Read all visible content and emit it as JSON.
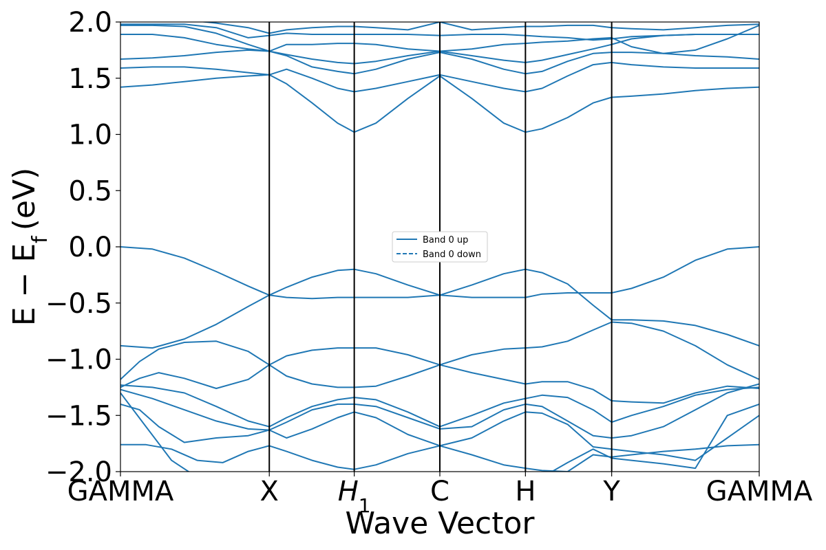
{
  "chart_data": {
    "type": "line",
    "xlabel": "Wave Vector",
    "ylabel": "E − E_f (eV)",
    "ylabel_main": "E − E",
    "ylabel_sub": "f",
    "ylabel_unit": "(eV)",
    "ylim": [
      -2.0,
      2.0
    ],
    "yticks": [
      -2.0,
      -1.5,
      -1.0,
      -0.5,
      0.0,
      0.5,
      1.0,
      1.5,
      2.0
    ],
    "ytick_labels": [
      "−2.0",
      "−1.5",
      "−1.0",
      "−0.5",
      "0.0",
      "0.5",
      "1.0",
      "1.5",
      "2.0"
    ],
    "kpoints": [
      {
        "label": "GAMMA",
        "x": 0.0
      },
      {
        "label": "X",
        "x": 0.233
      },
      {
        "label": "H",
        "sub": "1",
        "x": 0.366
      },
      {
        "label": "C",
        "x": 0.5
      },
      {
        "label": "H",
        "x": 0.634
      },
      {
        "label": "Y",
        "x": 0.769
      },
      {
        "label": "GAMMA",
        "x": 1.0
      }
    ],
    "legend": {
      "placement": "center",
      "entries": [
        {
          "label": "Band 0 up",
          "style": "solid"
        },
        {
          "label": "Band 0 down",
          "style": "dashed"
        }
      ]
    },
    "line_color": "#1f77b4",
    "bands": [
      {
        "x": [
          0,
          0.05,
          0.1,
          0.15,
          0.2,
          0.233,
          0.26,
          0.3,
          0.34,
          0.366,
          0.4,
          0.45,
          0.5,
          0.55,
          0.6,
          0.634,
          0.66,
          0.7,
          0.74,
          0.769,
          0.8,
          0.85,
          0.9,
          0.95,
          1.0
        ],
        "y": [
          0.0,
          -0.02,
          -0.1,
          -0.22,
          -0.35,
          -0.43,
          -0.36,
          -0.27,
          -0.21,
          -0.2,
          -0.24,
          -0.34,
          -0.43,
          -0.34,
          -0.24,
          -0.2,
          -0.23,
          -0.33,
          -0.52,
          -0.65,
          -0.65,
          -0.66,
          -0.7,
          -0.78,
          -0.88
        ]
      },
      {
        "x": [
          0,
          0.05,
          0.1,
          0.15,
          0.2,
          0.233,
          0.26,
          0.3,
          0.34,
          0.366,
          0.4,
          0.45,
          0.5,
          0.55,
          0.6,
          0.634,
          0.66,
          0.7,
          0.74,
          0.769,
          0.8,
          0.85,
          0.9,
          0.95,
          1.0
        ],
        "y": [
          -0.88,
          -0.9,
          -0.82,
          -0.69,
          -0.53,
          -0.43,
          -0.45,
          -0.46,
          -0.45,
          -0.45,
          -0.45,
          -0.45,
          -0.43,
          -0.45,
          -0.45,
          -0.45,
          -0.42,
          -0.41,
          -0.41,
          -0.41,
          -0.37,
          -0.27,
          -0.12,
          -0.02,
          0.0
        ]
      },
      {
        "x": [
          0,
          0.03,
          0.06,
          0.1,
          0.15,
          0.2,
          0.233,
          0.26,
          0.3,
          0.34,
          0.366,
          0.4,
          0.45,
          0.5,
          0.55,
          0.6,
          0.634,
          0.66,
          0.7,
          0.74,
          0.769,
          0.8,
          0.85,
          0.9,
          0.95,
          1.0
        ],
        "y": [
          -1.18,
          -1.02,
          -0.91,
          -0.85,
          -0.84,
          -0.93,
          -1.05,
          -0.97,
          -0.92,
          -0.9,
          -0.9,
          -0.9,
          -0.96,
          -1.05,
          -0.96,
          -0.91,
          -0.9,
          -0.89,
          -0.84,
          -0.74,
          -0.67,
          -0.68,
          -0.75,
          -0.88,
          -1.05,
          -1.18
        ]
      },
      {
        "x": [
          0,
          0.03,
          0.06,
          0.1,
          0.15,
          0.2,
          0.233,
          0.26,
          0.3,
          0.34,
          0.366,
          0.4,
          0.45,
          0.5,
          0.55,
          0.6,
          0.634,
          0.66,
          0.7,
          0.74,
          0.769,
          0.8,
          0.85,
          0.9,
          0.95,
          1.0
        ],
        "y": [
          -1.25,
          -1.17,
          -1.12,
          -1.17,
          -1.26,
          -1.18,
          -1.05,
          -1.15,
          -1.22,
          -1.25,
          -1.25,
          -1.24,
          -1.15,
          -1.05,
          -1.12,
          -1.18,
          -1.22,
          -1.2,
          -1.2,
          -1.27,
          -1.37,
          -1.38,
          -1.39,
          -1.3,
          -1.24,
          -1.26
        ]
      },
      {
        "x": [
          0,
          0.05,
          0.1,
          0.15,
          0.2,
          0.233,
          0.26,
          0.3,
          0.34,
          0.366,
          0.4,
          0.45,
          0.5,
          0.55,
          0.6,
          0.634,
          0.66,
          0.7,
          0.74,
          0.769,
          0.8,
          0.85,
          0.9,
          0.95,
          1.0
        ],
        "y": [
          -1.23,
          -1.25,
          -1.3,
          -1.42,
          -1.55,
          -1.6,
          -1.52,
          -1.42,
          -1.36,
          -1.34,
          -1.36,
          -1.47,
          -1.6,
          -1.5,
          -1.39,
          -1.35,
          -1.32,
          -1.34,
          -1.45,
          -1.56,
          -1.5,
          -1.42,
          -1.32,
          -1.27,
          -1.25
        ]
      },
      {
        "x": [
          0,
          0.05,
          0.1,
          0.15,
          0.2,
          0.233,
          0.26,
          0.3,
          0.34,
          0.366,
          0.4,
          0.45,
          0.5,
          0.55,
          0.6,
          0.634,
          0.66,
          0.7,
          0.74,
          0.769,
          0.8,
          0.85,
          0.9,
          0.95,
          1.0
        ],
        "y": [
          -1.27,
          -1.35,
          -1.45,
          -1.55,
          -1.62,
          -1.63,
          -1.56,
          -1.45,
          -1.4,
          -1.4,
          -1.42,
          -1.52,
          -1.62,
          -1.6,
          -1.45,
          -1.4,
          -1.42,
          -1.55,
          -1.68,
          -1.7,
          -1.68,
          -1.6,
          -1.45,
          -1.3,
          -1.22
        ]
      },
      {
        "x": [
          0,
          0.03,
          0.06,
          0.1,
          0.15,
          0.2,
          0.233,
          0.26,
          0.3,
          0.34,
          0.366,
          0.4,
          0.45,
          0.5,
          0.55,
          0.6,
          0.634,
          0.66,
          0.7,
          0.74,
          0.769,
          0.8,
          0.85,
          0.9,
          0.95,
          1.0
        ],
        "y": [
          -1.4,
          -1.45,
          -1.6,
          -1.74,
          -1.7,
          -1.68,
          -1.63,
          -1.7,
          -1.62,
          -1.52,
          -1.47,
          -1.52,
          -1.67,
          -1.77,
          -1.7,
          -1.55,
          -1.47,
          -1.48,
          -1.58,
          -1.78,
          -1.8,
          -1.82,
          -1.85,
          -1.9,
          -1.7,
          -1.5
        ]
      },
      {
        "x": [
          0,
          0.04,
          0.08,
          0.12,
          0.16,
          0.2,
          0.233,
          0.26,
          0.3,
          0.34,
          0.366,
          0.4,
          0.45,
          0.5,
          0.55,
          0.6,
          0.634,
          0.66,
          0.7,
          0.74,
          0.769,
          0.8,
          0.85,
          0.9,
          0.95,
          1.0
        ],
        "y": [
          -1.76,
          -1.76,
          -1.8,
          -1.9,
          -1.92,
          -1.82,
          -1.77,
          -1.82,
          -1.9,
          -1.96,
          -1.98,
          -1.94,
          -1.84,
          -1.77,
          -1.85,
          -1.94,
          -1.97,
          -1.99,
          -2.0,
          -1.85,
          -1.87,
          -1.85,
          -1.82,
          -1.8,
          -1.77,
          -1.76
        ]
      },
      {
        "x": [
          0,
          0.04,
          0.08,
          0.12,
          0.16,
          0.2,
          0.233,
          0.26,
          0.3,
          0.34,
          0.366,
          0.4,
          0.45,
          0.5,
          0.55,
          0.6,
          0.634,
          0.66,
          0.7,
          0.74,
          0.769,
          0.8,
          0.85,
          0.9,
          0.95,
          1.0
        ],
        "y": [
          -1.3,
          -1.6,
          -1.9,
          -2.05,
          -2.05,
          -2.05,
          -2.05,
          -2.05,
          -2.05,
          -2.05,
          -2.05,
          -2.05,
          -2.05,
          -2.05,
          -2.05,
          -2.05,
          -2.05,
          -2.05,
          -1.92,
          -1.8,
          -1.88,
          -1.9,
          -1.93,
          -1.97,
          -1.5,
          -1.4
        ]
      },
      {
        "x": [
          0,
          0.05,
          0.1,
          0.15,
          0.2,
          0.233,
          0.26,
          0.3,
          0.34,
          0.366,
          0.4,
          0.45,
          0.5,
          0.55,
          0.6,
          0.634,
          0.66,
          0.7,
          0.74,
          0.769,
          0.8,
          0.85,
          0.9,
          0.95,
          1.0
        ],
        "y": [
          1.42,
          1.44,
          1.47,
          1.5,
          1.52,
          1.53,
          1.45,
          1.28,
          1.1,
          1.02,
          1.1,
          1.32,
          1.52,
          1.32,
          1.1,
          1.02,
          1.05,
          1.15,
          1.28,
          1.33,
          1.34,
          1.36,
          1.39,
          1.41,
          1.42
        ]
      },
      {
        "x": [
          0,
          0.05,
          0.1,
          0.15,
          0.2,
          0.233,
          0.26,
          0.3,
          0.34,
          0.366,
          0.4,
          0.45,
          0.5,
          0.55,
          0.6,
          0.634,
          0.66,
          0.7,
          0.74,
          0.769,
          0.8,
          0.85,
          0.9,
          0.95,
          1.0
        ],
        "y": [
          1.59,
          1.6,
          1.6,
          1.58,
          1.55,
          1.53,
          1.58,
          1.5,
          1.41,
          1.38,
          1.41,
          1.47,
          1.53,
          1.47,
          1.41,
          1.38,
          1.41,
          1.52,
          1.62,
          1.64,
          1.62,
          1.6,
          1.59,
          1.59,
          1.59
        ]
      },
      {
        "x": [
          0,
          0.05,
          0.1,
          0.15,
          0.2,
          0.233,
          0.26,
          0.3,
          0.34,
          0.366,
          0.4,
          0.45,
          0.5,
          0.55,
          0.6,
          0.634,
          0.66,
          0.7,
          0.74,
          0.769,
          0.8,
          0.85,
          0.9,
          0.95,
          1.0
        ],
        "y": [
          1.67,
          1.68,
          1.7,
          1.73,
          1.75,
          1.74,
          1.7,
          1.6,
          1.56,
          1.54,
          1.58,
          1.67,
          1.73,
          1.67,
          1.58,
          1.54,
          1.56,
          1.65,
          1.72,
          1.73,
          1.73,
          1.72,
          1.7,
          1.69,
          1.67
        ]
      },
      {
        "x": [
          0,
          0.05,
          0.1,
          0.15,
          0.2,
          0.233,
          0.26,
          0.3,
          0.34,
          0.366,
          0.4,
          0.45,
          0.5,
          0.55,
          0.6,
          0.634,
          0.66,
          0.7,
          0.74,
          0.769,
          0.8,
          0.85,
          0.9,
          0.95,
          1.0
        ],
        "y": [
          1.89,
          1.89,
          1.86,
          1.8,
          1.76,
          1.74,
          1.71,
          1.67,
          1.64,
          1.63,
          1.65,
          1.7,
          1.74,
          1.7,
          1.66,
          1.64,
          1.66,
          1.71,
          1.76,
          1.8,
          1.85,
          1.88,
          1.89,
          1.89,
          1.89
        ]
      },
      {
        "x": [
          0,
          0.05,
          0.1,
          0.15,
          0.2,
          0.233,
          0.26,
          0.3,
          0.34,
          0.366,
          0.4,
          0.45,
          0.5,
          0.55,
          0.6,
          0.634,
          0.66,
          0.7,
          0.74,
          0.769,
          0.8,
          0.85,
          0.9,
          0.95,
          1.0
        ],
        "y": [
          1.97,
          1.97,
          1.96,
          1.9,
          1.8,
          1.74,
          1.8,
          1.8,
          1.81,
          1.81,
          1.8,
          1.76,
          1.74,
          1.76,
          1.8,
          1.81,
          1.82,
          1.83,
          1.85,
          1.86,
          1.78,
          1.72,
          1.75,
          1.85,
          1.97
        ]
      },
      {
        "x": [
          0,
          0.05,
          0.1,
          0.15,
          0.2,
          0.233,
          0.26,
          0.3,
          0.34,
          0.366,
          0.4,
          0.45,
          0.5,
          0.55,
          0.6,
          0.634,
          0.66,
          0.7,
          0.74,
          0.769,
          0.8,
          0.85,
          0.9,
          0.95,
          1.0
        ],
        "y": [
          1.98,
          1.98,
          1.98,
          1.95,
          1.86,
          1.88,
          1.9,
          1.89,
          1.89,
          1.89,
          1.89,
          1.89,
          1.88,
          1.89,
          1.89,
          1.88,
          1.87,
          1.86,
          1.84,
          1.85,
          1.87,
          1.88,
          1.89,
          1.89,
          1.89
        ]
      },
      {
        "x": [
          0,
          0.05,
          0.1,
          0.15,
          0.2,
          0.233,
          0.26,
          0.3,
          0.34,
          0.366,
          0.4,
          0.45,
          0.5,
          0.55,
          0.6,
          0.634,
          0.66,
          0.7,
          0.74,
          0.769,
          0.8,
          0.85,
          0.9,
          0.95,
          1.0
        ],
        "y": [
          2.05,
          2.05,
          2.02,
          1.99,
          1.95,
          1.9,
          1.93,
          1.95,
          1.96,
          1.96,
          1.95,
          1.93,
          2.0,
          1.93,
          1.95,
          1.96,
          1.96,
          1.97,
          1.97,
          1.95,
          1.94,
          1.93,
          1.95,
          1.97,
          1.98
        ]
      }
    ]
  }
}
